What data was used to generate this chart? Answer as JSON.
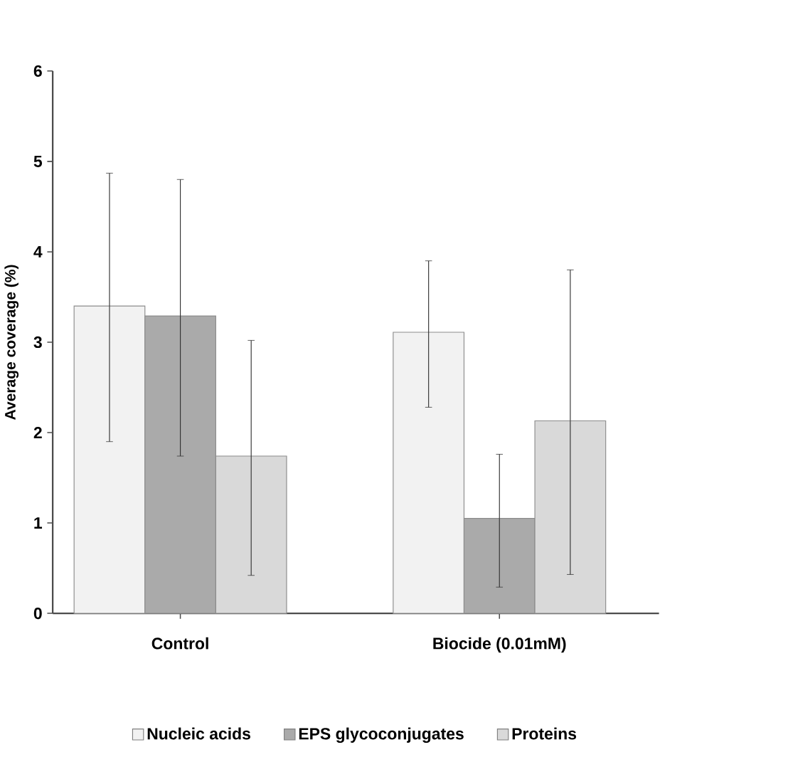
{
  "chart_data": {
    "type": "bar",
    "ylabel": "Average coverage  (%)",
    "categories": [
      "Control",
      "Biocide (0.01mM)"
    ],
    "series": [
      {
        "name": "Nucleic acids",
        "color": "#f2f2f2",
        "values": [
          3.4,
          3.11
        ],
        "errors": [
          [
            1.9,
            4.87
          ],
          [
            2.28,
            3.9
          ]
        ]
      },
      {
        "name": "EPS glycoconjugates",
        "color": "#aaaaaa",
        "values": [
          3.29,
          1.05
        ],
        "errors": [
          [
            1.74,
            4.8
          ],
          [
            0.29,
            1.76
          ]
        ]
      },
      {
        "name": "Proteins",
        "color": "#d9d9d9",
        "values": [
          1.74,
          2.13
        ],
        "errors": [
          [
            0.42,
            3.02
          ],
          [
            0.43,
            3.8
          ]
        ]
      }
    ],
    "ylim": [
      0,
      6
    ],
    "yticks": [
      0,
      1,
      2,
      3,
      4,
      5,
      6
    ],
    "legend": "bottom"
  }
}
